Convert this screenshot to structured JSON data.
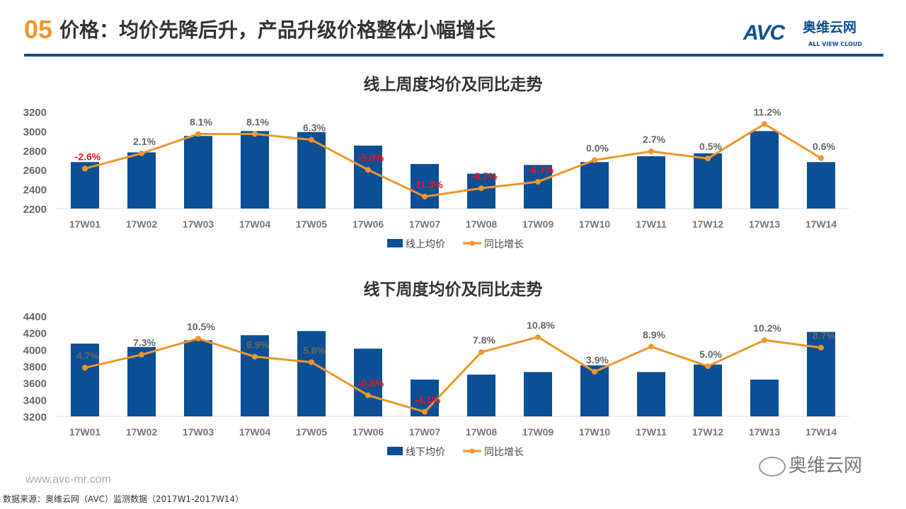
{
  "header": {
    "number": "05",
    "title": "价格：均价先降后升，产品升级价格整体小幅增长"
  },
  "logo": {
    "brand": "AVC",
    "cn": "奥维云网",
    "en": "ALL VIEW CLOUD"
  },
  "colors": {
    "bar": "#0d4f94",
    "line": "#f0962a",
    "negative_label": "#e8141b",
    "positive_label": "#666666",
    "accent": "#0d4f94"
  },
  "chart_data": [
    {
      "type": "bar+line",
      "title": "线上周度均价及同比走势",
      "categories": [
        "17W01",
        "17W02",
        "17W03",
        "17W04",
        "17W05",
        "17W06",
        "17W07",
        "17W08",
        "17W09",
        "17W10",
        "17W11",
        "17W12",
        "17W13",
        "17W14"
      ],
      "series": [
        {
          "name": "线上均价",
          "type": "bar",
          "values": [
            2680,
            2780,
            2950,
            3000,
            2990,
            2850,
            2660,
            2560,
            2650,
            2680,
            2740,
            2770,
            3000,
            2680
          ]
        },
        {
          "name": "同比增长",
          "type": "line",
          "axis": "secondary",
          "values": [
            -2.6,
            2.1,
            8.1,
            8.1,
            6.3,
            -3.0,
            -11.3,
            -8.7,
            -6.7,
            0.0,
            2.7,
            0.5,
            11.2,
            0.6
          ],
          "labels": [
            "-2.6%",
            "2.1%",
            "8.1%",
            "8.1%",
            "6.3%",
            "-3.0%",
            "-11.3%",
            "-8.7%",
            "-6.7%",
            "0.0%",
            "2.7%",
            "0.5%",
            "11.2%",
            "0.6%"
          ]
        }
      ],
      "ylim": [
        2200,
        3200
      ],
      "yticks": [
        "2200",
        "2400",
        "2600",
        "2800",
        "3000",
        "3200"
      ],
      "y2lim": [
        -15,
        15
      ],
      "grid": false,
      "legend": "bottom"
    },
    {
      "type": "bar+line",
      "title": "线下周度均价及同比走势",
      "categories": [
        "17W01",
        "17W02",
        "17W03",
        "17W04",
        "17W05",
        "17W06",
        "17W07",
        "17W08",
        "17W09",
        "17W10",
        "17W11",
        "17W12",
        "17W13",
        "17W14"
      ],
      "series": [
        {
          "name": "线下均价",
          "type": "bar",
          "values": [
            4070,
            4030,
            4110,
            4170,
            4220,
            4010,
            3640,
            3700,
            3730,
            3810,
            3730,
            3820,
            3640,
            4210
          ]
        },
        {
          "name": "同比增长",
          "type": "line",
          "axis": "secondary",
          "values": [
            4.7,
            7.3,
            10.5,
            6.9,
            5.8,
            -0.8,
            -4.1,
            7.8,
            10.8,
            3.9,
            8.9,
            5.0,
            10.2,
            8.7
          ],
          "labels": [
            "4.7%",
            "7.3%",
            "10.5%",
            "6.9%",
            "5.8%",
            "-0.8%",
            "-4.1%",
            "7.8%",
            "10.8%",
            "3.9%",
            "8.9%",
            "5.0%",
            "10.2%",
            "8.7%"
          ]
        }
      ],
      "ylim": [
        3200,
        4400
      ],
      "yticks": [
        "3200",
        "3400",
        "3600",
        "3800",
        "4000",
        "4200",
        "4400"
      ],
      "y2lim": [
        -5,
        15
      ],
      "grid": false,
      "legend": "bottom"
    }
  ],
  "footer": {
    "site": "www.avc-mr.com",
    "source": "数据来源：奥维云网（AVC）监测数据（2017W1-2017W14）",
    "wechat": "奥维云网"
  }
}
